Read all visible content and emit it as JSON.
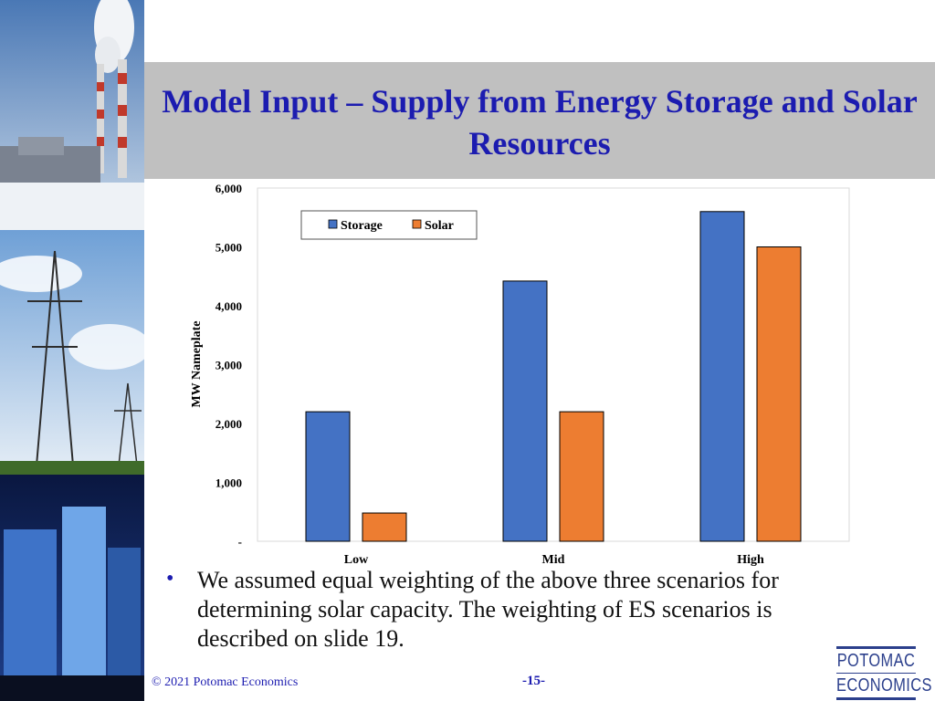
{
  "slide": {
    "title": "Model Input – Supply from Energy Storage and Solar Resources",
    "bullet": "We assumed equal weighting of the above three scenarios for determining solar capacity.  The weighting of ES scenarios is described on slide 19.",
    "footer_copyright": "© 2021 Potomac Economics",
    "page_number": "-15-",
    "logo_line1": "POTOMAC",
    "logo_line2": "ECONOMICS",
    "colors": {
      "title": "#1c1cb0",
      "title_band": "#c0c0c0"
    }
  },
  "chart_data": {
    "type": "bar",
    "categories": [
      "Low",
      "Mid",
      "High"
    ],
    "series": [
      {
        "name": "Storage",
        "color": "#4472c4",
        "values": [
          2200,
          4420,
          5600
        ]
      },
      {
        "name": "Solar",
        "color": "#ed7d31",
        "values": [
          480,
          2200,
          5000
        ]
      }
    ],
    "ylabel": "MW Nameplate",
    "ylim": [
      0,
      6000
    ],
    "yticks": [
      0,
      1000,
      2000,
      3000,
      4000,
      5000,
      6000
    ],
    "ytick_labels": [
      "-",
      "1,000",
      "2,000",
      "3,000",
      "4,000",
      "5,000",
      "6,000"
    ],
    "legend_position": "top-left",
    "grid": false
  }
}
